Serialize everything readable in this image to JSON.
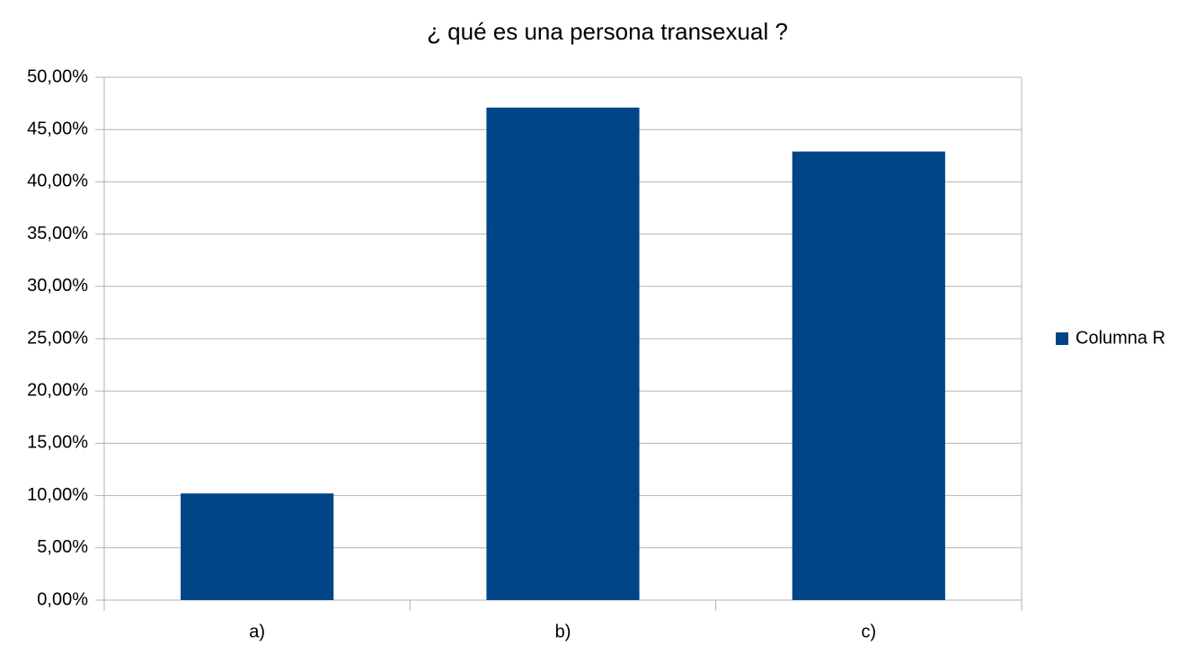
{
  "chart_data": {
    "type": "bar",
    "title": "¿ qué es una persona transexual ?",
    "categories": [
      "a)",
      "b)",
      "c)"
    ],
    "series": [
      {
        "name": "Columna R",
        "color": "#004586",
        "values": [
          10.2,
          47.1,
          42.9
        ]
      }
    ],
    "ylim": [
      0,
      50
    ],
    "yticks": [
      {
        "value": 0,
        "label": "0,00%"
      },
      {
        "value": 5,
        "label": "5,00%"
      },
      {
        "value": 10,
        "label": "10,00%"
      },
      {
        "value": 15,
        "label": "15,00%"
      },
      {
        "value": 20,
        "label": "20,00%"
      },
      {
        "value": 25,
        "label": "25,00%"
      },
      {
        "value": 30,
        "label": "30,00%"
      },
      {
        "value": 35,
        "label": "35,00%"
      },
      {
        "value": 40,
        "label": "40,00%"
      },
      {
        "value": 45,
        "label": "45,00%"
      },
      {
        "value": 50,
        "label": "50,00%"
      }
    ],
    "grid": true,
    "legend": "right"
  }
}
